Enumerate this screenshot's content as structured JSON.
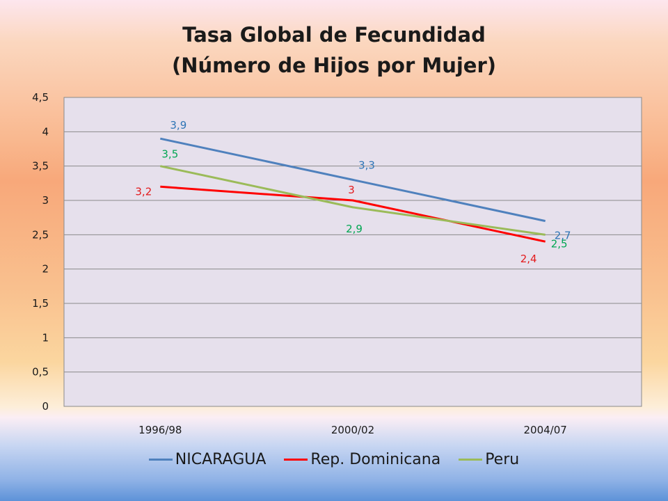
{
  "chart_data": {
    "type": "line",
    "title_line1": "Tasa Global de Fecundidad",
    "title_line2": "(Número de Hijos por Mujer)",
    "categories": [
      "1996/98",
      "2000/02",
      "2004/07"
    ],
    "ylim": [
      0,
      4.5
    ],
    "yticks": [
      "0",
      "0,5",
      "1",
      "1,5",
      "2",
      "2,5",
      "3",
      "3,5",
      "4",
      "4,5"
    ],
    "grid": true,
    "legend_position": "bottom",
    "series": [
      {
        "name": "NICARAGUA",
        "values": [
          3.9,
          3.3,
          2.7
        ],
        "labels": [
          "3,9",
          "3,3",
          "2,7"
        ],
        "color": "#4f81bd",
        "label_color": "#2e75b6"
      },
      {
        "name": "Rep. Dominicana",
        "values": [
          3.2,
          3.0,
          2.4
        ],
        "labels": [
          "3,2",
          "3",
          "2,4"
        ],
        "color": "#ff0000",
        "label_color": "#e31a1c"
      },
      {
        "name": "Peru",
        "values": [
          3.5,
          2.9,
          2.5
        ],
        "labels": [
          "3,5",
          "2,9",
          "2,5"
        ],
        "color": "#9bbb59",
        "label_color": "#00a651"
      }
    ]
  }
}
